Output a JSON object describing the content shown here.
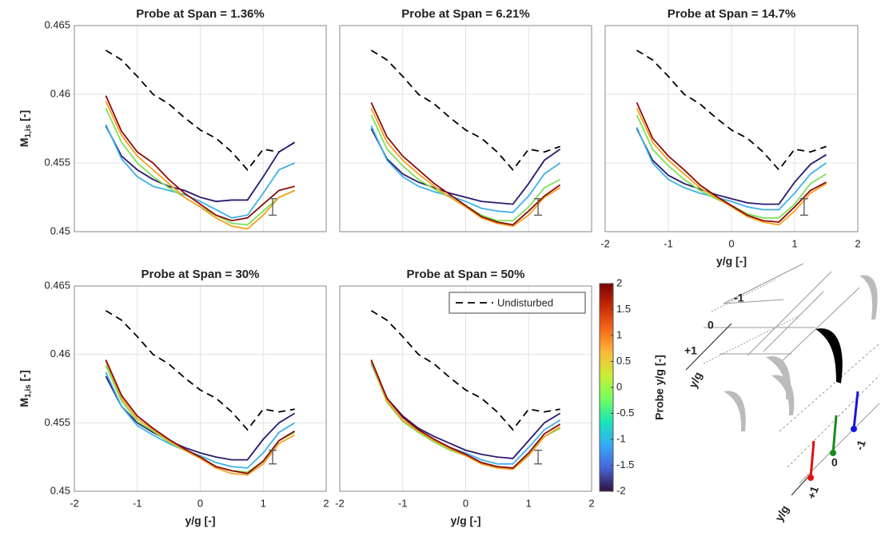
{
  "chart_data": [
    {
      "type": "line",
      "title": "Probe at Span = 1.36%",
      "ylabel": "M",
      "ylabel_sub": "1,is",
      "ylabel_unit": " [-]",
      "xlim": [
        -2,
        2
      ],
      "ylim": [
        0.45,
        0.465
      ],
      "xticks": [
        -2,
        -1,
        0,
        1,
        2
      ],
      "yticks": [
        0.45,
        0.455,
        0.46,
        0.465
      ],
      "show_xtick_labels": false,
      "show_ytick_labels": true,
      "grid": true,
      "x": [
        -1.5,
        -1.25,
        -1,
        -0.75,
        -0.5,
        -0.25,
        0,
        0.25,
        0.5,
        0.75,
        1,
        1.25,
        1.5
      ],
      "series": [
        {
          "name": "Undisturbed",
          "color": "#000000",
          "dash": true,
          "values": [
            0.4632,
            0.4625,
            0.4613,
            0.46,
            0.4593,
            0.4583,
            0.4574,
            0.4568,
            0.4558,
            0.4545,
            0.456,
            0.4558,
            0.4565
          ]
        },
        {
          "color": "#2a1a6e",
          "values": [
            0.4577,
            0.4555,
            0.4545,
            0.4538,
            0.4533,
            0.453,
            0.4525,
            0.4522,
            0.4523,
            0.4523,
            0.454,
            0.4558,
            0.4565
          ]
        },
        {
          "color": "#3fb0e8",
          "values": [
            0.4578,
            0.4553,
            0.454,
            0.4533,
            0.453,
            0.4527,
            0.4522,
            0.4516,
            0.451,
            0.4512,
            0.4528,
            0.4545,
            0.455
          ]
        },
        {
          "color": "#7ee05a",
          "values": [
            0.459,
            0.4565,
            0.455,
            0.454,
            0.4532,
            0.4525,
            0.4518,
            0.4512,
            0.4506,
            0.4505,
            0.4515,
            0.4525,
            0.453
          ]
        },
        {
          "color": "#f5a020",
          "values": [
            0.4595,
            0.457,
            0.4555,
            0.4545,
            0.4535,
            0.4525,
            0.4518,
            0.451,
            0.4504,
            0.4502,
            0.4512,
            0.4525,
            0.453
          ]
        },
        {
          "color": "#8b0a0a",
          "values": [
            0.4599,
            0.4573,
            0.4558,
            0.455,
            0.4538,
            0.4528,
            0.452,
            0.4512,
            0.4508,
            0.451,
            0.452,
            0.453,
            0.4533
          ]
        }
      ],
      "error_bar": {
        "x": 1.15,
        "y": 0.4518,
        "err": 0.0006
      }
    },
    {
      "type": "line",
      "title": "Probe at Span = 6.21%",
      "xlim": [
        -2,
        2
      ],
      "ylim": [
        0.45,
        0.465
      ],
      "xticks": [
        -2,
        -1,
        0,
        1,
        2
      ],
      "yticks": [
        0.45,
        0.455,
        0.46,
        0.465
      ],
      "show_xtick_labels": false,
      "show_ytick_labels": false,
      "grid": true,
      "x": [
        -1.5,
        -1.25,
        -1,
        -0.75,
        -0.5,
        -0.25,
        0,
        0.25,
        0.5,
        0.75,
        1,
        1.25,
        1.5
      ],
      "series": [
        {
          "name": "Undisturbed",
          "color": "#000000",
          "dash": true,
          "values": [
            0.4632,
            0.4625,
            0.4613,
            0.46,
            0.4593,
            0.4583,
            0.4574,
            0.4568,
            0.4558,
            0.4545,
            0.456,
            0.4558,
            0.4562
          ]
        },
        {
          "color": "#2a1a6e",
          "values": [
            0.4575,
            0.4553,
            0.4542,
            0.4536,
            0.4532,
            0.4528,
            0.4525,
            0.4522,
            0.4521,
            0.452,
            0.4535,
            0.4552,
            0.456
          ]
        },
        {
          "color": "#3fb0e8",
          "values": [
            0.4577,
            0.4552,
            0.454,
            0.4533,
            0.4529,
            0.4526,
            0.4522,
            0.4517,
            0.4515,
            0.4514,
            0.4526,
            0.4542,
            0.455
          ]
        },
        {
          "color": "#7ee05a",
          "values": [
            0.4585,
            0.456,
            0.4548,
            0.4538,
            0.4531,
            0.4525,
            0.4519,
            0.4512,
            0.4508,
            0.4508,
            0.4518,
            0.4532,
            0.4538
          ]
        },
        {
          "color": "#f5a020",
          "values": [
            0.459,
            0.4565,
            0.4552,
            0.4542,
            0.4533,
            0.4525,
            0.4518,
            0.451,
            0.4506,
            0.4504,
            0.4512,
            0.4525,
            0.4532
          ]
        },
        {
          "color": "#8b0a0a",
          "values": [
            0.4594,
            0.4569,
            0.4555,
            0.4545,
            0.4535,
            0.4527,
            0.4519,
            0.4511,
            0.4507,
            0.4505,
            0.4515,
            0.4526,
            0.4534
          ]
        }
      ],
      "error_bar": {
        "x": 1.15,
        "y": 0.4518,
        "err": 0.0006
      }
    },
    {
      "type": "line",
      "title": "Probe at Span = 14.7%",
      "xlabel": "y/g [-]",
      "xlim": [
        -2,
        2
      ],
      "ylim": [
        0.45,
        0.465
      ],
      "xticks": [
        -2,
        -1,
        0,
        1,
        2
      ],
      "yticks": [
        0.45,
        0.455,
        0.46,
        0.465
      ],
      "show_xtick_labels": true,
      "show_ytick_labels": false,
      "grid": true,
      "x": [
        -1.5,
        -1.25,
        -1,
        -0.75,
        -0.5,
        -0.25,
        0,
        0.25,
        0.5,
        0.75,
        1,
        1.25,
        1.5
      ],
      "series": [
        {
          "name": "Undisturbed",
          "color": "#000000",
          "dash": true,
          "values": [
            0.4632,
            0.4625,
            0.4613,
            0.46,
            0.4593,
            0.4583,
            0.4574,
            0.4568,
            0.4558,
            0.4545,
            0.456,
            0.4558,
            0.4562
          ]
        },
        {
          "color": "#2a1a6e",
          "values": [
            0.4575,
            0.4552,
            0.4541,
            0.4535,
            0.4531,
            0.4527,
            0.4524,
            0.4521,
            0.452,
            0.452,
            0.4536,
            0.4549,
            0.4556
          ]
        },
        {
          "color": "#3fb0e8",
          "values": [
            0.4576,
            0.455,
            0.4538,
            0.4532,
            0.4528,
            0.4525,
            0.4522,
            0.4518,
            0.4516,
            0.4516,
            0.4528,
            0.4542,
            0.455
          ]
        },
        {
          "color": "#7ee05a",
          "values": [
            0.4585,
            0.456,
            0.4548,
            0.4538,
            0.453,
            0.4524,
            0.4519,
            0.4513,
            0.451,
            0.451,
            0.452,
            0.4535,
            0.4542
          ]
        },
        {
          "color": "#f5a020",
          "values": [
            0.459,
            0.4565,
            0.4552,
            0.4542,
            0.4532,
            0.4525,
            0.4518,
            0.4511,
            0.4507,
            0.4505,
            0.4515,
            0.4528,
            0.4535
          ]
        },
        {
          "color": "#8b0a0a",
          "values": [
            0.4594,
            0.4568,
            0.4555,
            0.4545,
            0.4534,
            0.4526,
            0.4519,
            0.4512,
            0.4508,
            0.4507,
            0.4518,
            0.453,
            0.4536
          ]
        }
      ],
      "error_bar": {
        "x": 1.15,
        "y": 0.4518,
        "err": 0.0006
      }
    },
    {
      "type": "line",
      "title": "Probe at Span = 30%",
      "xlabel": "y/g [-]",
      "ylabel": "M",
      "ylabel_sub": "1,is",
      "ylabel_unit": " [-]",
      "xlim": [
        -2,
        2
      ],
      "ylim": [
        0.45,
        0.465
      ],
      "xticks": [
        -2,
        -1,
        0,
        1,
        2
      ],
      "yticks": [
        0.45,
        0.455,
        0.46,
        0.465
      ],
      "show_xtick_labels": true,
      "show_ytick_labels": true,
      "grid": true,
      "x": [
        -1.5,
        -1.25,
        -1,
        -0.75,
        -0.5,
        -0.25,
        0,
        0.25,
        0.5,
        0.75,
        1,
        1.25,
        1.5
      ],
      "series": [
        {
          "name": "Undisturbed",
          "color": "#000000",
          "dash": true,
          "values": [
            0.4632,
            0.4625,
            0.4613,
            0.46,
            0.4593,
            0.4583,
            0.4574,
            0.4568,
            0.4558,
            0.4545,
            0.456,
            0.4558,
            0.456
          ]
        },
        {
          "color": "#2a1a6e",
          "values": [
            0.4584,
            0.4562,
            0.455,
            0.4543,
            0.4537,
            0.4532,
            0.4528,
            0.4525,
            0.4523,
            0.4523,
            0.4538,
            0.455,
            0.4557
          ]
        },
        {
          "color": "#3fb0e8",
          "values": [
            0.4587,
            0.4562,
            0.4548,
            0.4541,
            0.4535,
            0.453,
            0.4526,
            0.4521,
            0.4518,
            0.4517,
            0.4528,
            0.4543,
            0.455
          ]
        },
        {
          "color": "#7ee05a",
          "values": [
            0.4592,
            0.4566,
            0.4551,
            0.4544,
            0.4536,
            0.453,
            0.4525,
            0.4518,
            0.4515,
            0.4514,
            0.4522,
            0.4537,
            0.4543
          ]
        },
        {
          "color": "#f5a020",
          "values": [
            0.4595,
            0.4568,
            0.4553,
            0.4545,
            0.4537,
            0.453,
            0.4524,
            0.4517,
            0.4513,
            0.4512,
            0.452,
            0.4535,
            0.4541
          ]
        },
        {
          "color": "#8b0a0a",
          "values": [
            0.4596,
            0.457,
            0.4555,
            0.4546,
            0.4538,
            0.4531,
            0.4525,
            0.4518,
            0.4515,
            0.4513,
            0.4522,
            0.4537,
            0.4544
          ]
        }
      ],
      "error_bar": {
        "x": 1.15,
        "y": 0.4525,
        "err": 0.0005
      }
    },
    {
      "type": "line",
      "title": "Probe at Span = 50%",
      "xlabel": "y/g [-]",
      "legend": "top-right",
      "xlim": [
        -2,
        2
      ],
      "ylim": [
        0.45,
        0.465
      ],
      "xticks": [
        -2,
        -1,
        0,
        1,
        2
      ],
      "yticks": [
        0.45,
        0.455,
        0.46,
        0.465
      ],
      "show_xtick_labels": true,
      "show_ytick_labels": false,
      "grid": true,
      "x": [
        -1.5,
        -1.25,
        -1,
        -0.75,
        -0.5,
        -0.25,
        0,
        0.25,
        0.5,
        0.75,
        1,
        1.25,
        1.5
      ],
      "series": [
        {
          "name": "Undisturbed",
          "color": "#000000",
          "dash": true,
          "values": [
            0.4632,
            0.4625,
            0.4613,
            0.46,
            0.4593,
            0.4583,
            0.4574,
            0.4568,
            0.4558,
            0.4545,
            0.456,
            0.4558,
            0.456
          ]
        },
        {
          "color": "#2a1a6e",
          "values": [
            0.4593,
            0.4568,
            0.4555,
            0.4546,
            0.454,
            0.4535,
            0.453,
            0.4527,
            0.4525,
            0.4524,
            0.4537,
            0.455,
            0.4557
          ]
        },
        {
          "color": "#3fb0e8",
          "values": [
            0.4593,
            0.4566,
            0.4552,
            0.4544,
            0.4538,
            0.4532,
            0.4528,
            0.4523,
            0.452,
            0.452,
            0.4532,
            0.4545,
            0.4552
          ]
        },
        {
          "color": "#7ee05a",
          "values": [
            0.4594,
            0.4565,
            0.4551,
            0.4543,
            0.4536,
            0.453,
            0.4526,
            0.4521,
            0.4518,
            0.4517,
            0.4527,
            0.454,
            0.4546
          ]
        },
        {
          "color": "#f5a020",
          "values": [
            0.4595,
            0.4566,
            0.4552,
            0.4544,
            0.4537,
            0.4531,
            0.4526,
            0.452,
            0.4517,
            0.4516,
            0.4526,
            0.454,
            0.4547
          ]
        },
        {
          "color": "#8b0a0a",
          "values": [
            0.4596,
            0.4568,
            0.4554,
            0.4545,
            0.4538,
            0.4532,
            0.4527,
            0.4521,
            0.4518,
            0.4517,
            0.4528,
            0.4542,
            0.4549
          ]
        }
      ],
      "error_bar": {
        "x": 1.15,
        "y": 0.4525,
        "err": 0.0005
      }
    }
  ],
  "colorbar": {
    "label": "Probe y/g [-]",
    "lim": [
      -2,
      2
    ],
    "ticks": [
      2,
      1.5,
      1,
      0.5,
      0,
      -0.5,
      -1,
      -1.5,
      -2
    ],
    "colors": [
      "#30123b",
      "#4662d7",
      "#36aaf9",
      "#1ae4b6",
      "#72fe5e",
      "#c8ef34",
      "#faba39",
      "#f66b19",
      "#ca2a04",
      "#7a0403"
    ]
  },
  "diagram": {
    "top_labels": [
      "-1",
      "0",
      "+1"
    ],
    "top_axis": "y/g",
    "bottom_labels": [
      "-1",
      "0",
      "+1"
    ],
    "bottom_axis": "y/g"
  }
}
